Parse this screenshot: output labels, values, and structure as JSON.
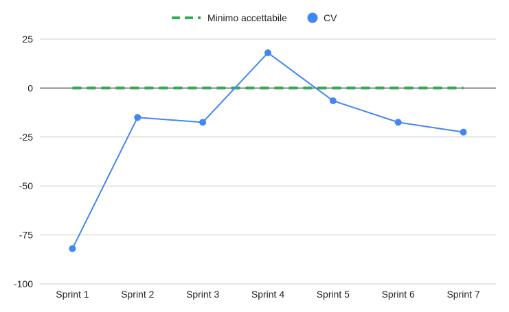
{
  "chart_data": {
    "type": "line",
    "categories": [
      "Sprint 1",
      "Sprint 2",
      "Sprint 3",
      "Sprint 4",
      "Sprint 5",
      "Sprint 6",
      "Sprint 7"
    ],
    "series": [
      {
        "name": "Minimo accettabile",
        "values": [
          0,
          0,
          0,
          0,
          0,
          0,
          0
        ],
        "color": "#34a853",
        "style": "dashed"
      },
      {
        "name": "CV",
        "values": [
          -82,
          -15,
          -17.5,
          18,
          -6.5,
          -17.5,
          -22.5
        ],
        "color": "#4285f4",
        "style": "solid-with-markers"
      }
    ],
    "yticks": [
      25,
      0,
      -25,
      -50,
      -75,
      -100
    ],
    "ylim": [
      -100,
      25
    ],
    "title": "",
    "xlabel": "",
    "ylabel": "",
    "grid": true,
    "legend_position": "top-center"
  }
}
